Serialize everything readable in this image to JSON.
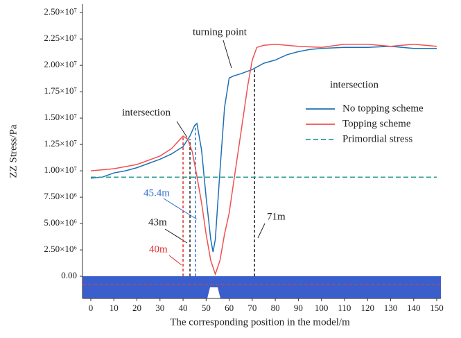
{
  "chart_data": {
    "type": "line",
    "xlabel": "The corresponding position in the model/m",
    "ylabel": "ZZ Stress/Pa",
    "xlim": [
      -3.6,
      151.8
    ],
    "ylim": [
      -2100000,
      25800000
    ],
    "xticks": [
      0,
      10,
      20,
      30,
      40,
      50,
      60,
      70,
      80,
      90,
      100,
      110,
      120,
      130,
      140,
      150
    ],
    "yticks": [
      {
        "value": 0,
        "label": "0.00"
      },
      {
        "value": 2500000,
        "label": "2.50×10⁶"
      },
      {
        "value": 5000000,
        "label": "5.00×10⁶"
      },
      {
        "value": 7500000,
        "label": "7.50×10⁶"
      },
      {
        "value": 10000000,
        "label": "1.00×10⁷"
      },
      {
        "value": 12500000,
        "label": "1.25×10⁷"
      },
      {
        "value": 15000000,
        "label": "1.50×10⁷"
      },
      {
        "value": 17500000,
        "label": "1.75×10⁷"
      },
      {
        "value": 20000000,
        "label": "2.00×10⁷"
      },
      {
        "value": 22500000,
        "label": "2.25×10⁷"
      },
      {
        "value": 25000000,
        "label": "2.50×10⁷"
      }
    ],
    "series": [
      {
        "name": "No topping scheme",
        "color": "#1f6fb4",
        "dash": false,
        "x": [
          0,
          5,
          10,
          15,
          20,
          25,
          30,
          35,
          40,
          43,
          45,
          46,
          48,
          50,
          52,
          53,
          54,
          56,
          58,
          60,
          62,
          65,
          70,
          75,
          80,
          85,
          90,
          95,
          100,
          110,
          120,
          130,
          140,
          150
        ],
        "values": [
          9300000,
          9400000,
          9800000,
          10000000,
          10300000,
          10700000,
          11100000,
          11600000,
          12300000,
          13300000,
          14300000,
          14500000,
          12000000,
          7500000,
          3500000,
          2300000,
          3500000,
          10000000,
          16000000,
          18800000,
          19000000,
          19200000,
          19600000,
          20200000,
          20500000,
          21000000,
          21300000,
          21500000,
          21600000,
          21700000,
          21700000,
          21800000,
          21600000,
          21600000
        ]
      },
      {
        "name": "Topping scheme",
        "color": "#f05050",
        "dash": false,
        "x": [
          0,
          10,
          20,
          30,
          35,
          40,
          42,
          44,
          46,
          48,
          50,
          52,
          54,
          56,
          58,
          60,
          62,
          64,
          66,
          68,
          70,
          72,
          75,
          80,
          90,
          100,
          110,
          120,
          130,
          140,
          150
        ],
        "values": [
          10000000,
          10200000,
          10600000,
          11400000,
          12100000,
          13300000,
          13000000,
          11800000,
          9500000,
          7000000,
          4000000,
          1500000,
          200000,
          1500000,
          4000000,
          6000000,
          9000000,
          12000000,
          15000000,
          18000000,
          20500000,
          21700000,
          21900000,
          22000000,
          21800000,
          21700000,
          22000000,
          22000000,
          21800000,
          22000000,
          21800000
        ]
      },
      {
        "name": "Primordial stress",
        "color": "#2a9d8f",
        "dash": true,
        "x": [
          0,
          150
        ],
        "values": [
          9400000,
          9400000
        ]
      }
    ],
    "vlines": [
      {
        "x": 40,
        "top": 13300000,
        "color": "#e03030"
      },
      {
        "x": 43,
        "top": 13000000,
        "color": "#222222"
      },
      {
        "x": 45.4,
        "top": 14400000,
        "color": "#2f6fd0"
      },
      {
        "x": 71,
        "top": 19700000,
        "color": "#222222"
      }
    ],
    "annotations": [
      {
        "text": "turning point",
        "color": "#222222"
      },
      {
        "text": "intersection",
        "color": "#222222"
      },
      {
        "text": "intersection",
        "color": "#222222"
      },
      {
        "text": "45.4m",
        "color": "#2f6fd0"
      },
      {
        "text": "43m",
        "color": "#222222"
      },
      {
        "text": "40m",
        "color": "#e03030"
      },
      {
        "text": "71m",
        "color": "#222222"
      }
    ]
  }
}
